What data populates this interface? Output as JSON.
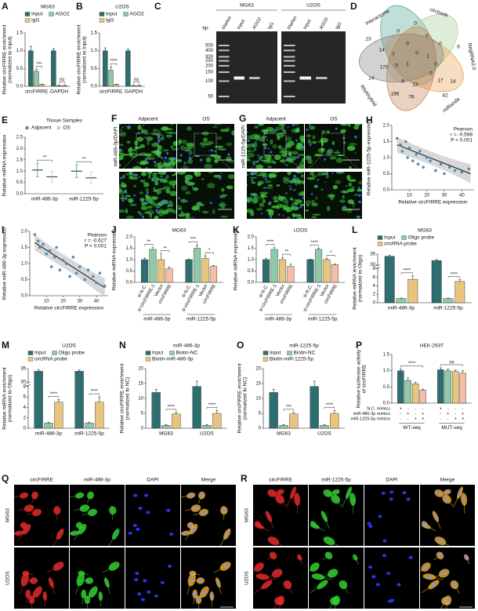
{
  "chart_data": [
    {
      "letter": "A",
      "type": "bar",
      "title": "MG63",
      "ylabel": [
        "Relative circFIRRE enrichment",
        "(normalized to Input)"
      ],
      "categories": [
        "circFIRRE",
        "GAPDH"
      ],
      "series": [
        {
          "name": "Input",
          "color": "#2f6e70",
          "values": [
            1.0,
            1.0
          ],
          "errors": [
            0.12,
            0.06
          ]
        },
        {
          "name": "AGO2",
          "color": "#8fcaa6",
          "values": [
            0.42,
            0.02
          ],
          "errors": [
            0.05,
            0.01
          ]
        },
        {
          "name": "IgG",
          "color": "#e9c47e",
          "values": [
            0.05,
            0.02
          ],
          "errors": [
            0.01,
            0.01
          ]
        }
      ],
      "ylim": [
        0,
        1.5
      ],
      "yticks": [
        {
          "value": 0,
          "label": "0.0"
        },
        {
          "value": 0.5,
          "label": "0.5"
        },
        {
          "value": 1,
          "label": "1.0"
        },
        {
          "value": 1.5,
          "label": "1.5"
        }
      ],
      "sig": [
        [
          "***"
        ],
        [
          "ns"
        ]
      ]
    },
    {
      "letter": "B",
      "type": "bar",
      "title": "U2OS",
      "ylabel": [
        "Relative circFIRRE enrichment",
        "(normalized to Input)"
      ],
      "categories": [
        "circFIRRE",
        "GAPDH"
      ],
      "series": [
        {
          "name": "Input",
          "color": "#2f6e70",
          "values": [
            1.0,
            1.0
          ],
          "errors": [
            0.08,
            0.05
          ]
        },
        {
          "name": "AGO2",
          "color": "#8fcaa6",
          "values": [
            0.45,
            0.02
          ],
          "errors": [
            0.1,
            0.01
          ]
        },
        {
          "name": "IgG",
          "color": "#e9c47e",
          "values": [
            0.05,
            0.02
          ],
          "errors": [
            0.01,
            0.01
          ]
        }
      ],
      "ylim": [
        0,
        1.5
      ],
      "yticks": [
        {
          "value": 0,
          "label": "0.0"
        },
        {
          "value": 0.5,
          "label": "0.5"
        },
        {
          "value": 1,
          "label": "1.0"
        },
        {
          "value": 1.5,
          "label": "1.5"
        }
      ],
      "sig": [
        [
          "****"
        ],
        [
          "ns"
        ]
      ]
    },
    {
      "letter": "E",
      "type": "dot",
      "title": "Tissue Samples",
      "ylabel": [
        "Relative miRNA expression"
      ],
      "categories": [
        "miR-486-3p",
        "miR-1225-5p"
      ],
      "series": [
        {
          "name": "Adjacent",
          "color": "#4a8fb8",
          "values": [
            1.05,
            1.0
          ],
          "errors": [
            0.3,
            0.28
          ]
        },
        {
          "name": "OS",
          "color": "#e9c47e",
          "values": [
            0.75,
            0.7
          ],
          "errors": [
            0.25,
            0.25
          ]
        }
      ],
      "ylim": [
        0,
        2.5
      ],
      "yticks": [
        {
          "value": 0,
          "label": "0.0"
        },
        {
          "value": 0.5,
          "label": "0.5"
        },
        {
          "value": 1,
          "label": "1.0"
        },
        {
          "value": 1.5,
          "label": "1.5"
        },
        {
          "value": 2,
          "label": "2.0"
        },
        2.5
      ],
      "sig": [
        [
          "**"
        ],
        [
          "**"
        ]
      ]
    },
    {
      "letter": "H",
      "type": "scatter",
      "ylabel": [
        "Relative miR-1225-5p expression"
      ],
      "xlabel": "Relative circFIRRE expression",
      "stats": [
        "Pearson",
        "r = -0.598",
        "P < 0.001"
      ],
      "color": "#4a8fb8",
      "x": [
        3,
        5,
        6,
        8,
        9,
        10,
        12,
        14,
        15,
        16,
        18,
        20,
        22,
        25,
        28,
        30,
        33,
        36,
        40,
        44
      ],
      "y": [
        1.6,
        1.4,
        1.2,
        1.5,
        1.0,
        1.3,
        0.9,
        1.1,
        0.8,
        1.2,
        0.7,
        1.0,
        0.9,
        0.6,
        0.8,
        0.5,
        0.7,
        0.6,
        0.55,
        0.65
      ],
      "fit": {
        "x": [
          3,
          45
        ],
        "y": [
          1.4,
          0.5
        ]
      },
      "xlim": [
        0,
        47
      ],
      "xticks": [
        10,
        20,
        30,
        40
      ],
      "ylim": [
        0,
        2
      ],
      "yticks": [
        {
          "value": 0,
          "label": "0.0"
        },
        {
          "value": 0.5,
          "label": "0.5"
        },
        {
          "value": 1,
          "label": "1.0"
        },
        {
          "value": 1.5,
          "label": "1.5"
        },
        {
          "value": 2,
          "label": "2.0"
        }
      ]
    },
    {
      "letter": "I",
      "type": "scatter",
      "ylabel": [
        "Relative miR-486-3p expression"
      ],
      "xlabel": "Relative circFIRRE expression",
      "stats": [
        "Pearson",
        "r = -0.627",
        "P < 0.001"
      ],
      "color": "#4a8fb8",
      "x": [
        3,
        5,
        6,
        8,
        10,
        12,
        13,
        15,
        16,
        18,
        20,
        22,
        24,
        26,
        28,
        30,
        33,
        35,
        38,
        40,
        42,
        45
      ],
      "y": [
        1.9,
        1.7,
        1.5,
        1.6,
        1.3,
        1.4,
        0.9,
        1.2,
        1.5,
        0.8,
        1.1,
        1.0,
        0.6,
        1.2,
        0.7,
        0.9,
        0.5,
        0.8,
        0.6,
        0.4,
        0.7,
        0.3
      ],
      "fit": {
        "x": [
          3,
          45
        ],
        "y": [
          1.65,
          0.25
        ]
      },
      "xlim": [
        0,
        47
      ],
      "xticks": [
        10,
        20,
        30,
        40
      ],
      "ylim": [
        0,
        2
      ],
      "yticks": [
        {
          "value": 0,
          "label": "0.0"
        },
        {
          "value": 0.5,
          "label": "0.5"
        },
        {
          "value": 1,
          "label": "1.0"
        },
        {
          "value": 1.5,
          "label": "1.5"
        },
        {
          "value": 2,
          "label": "2.0"
        }
      ]
    },
    {
      "letter": "J",
      "type": "bar",
      "title": "MG63",
      "legend": false,
      "ylabel": [
        "Relative miRNA expression"
      ],
      "categories": [
        "miR-486-3p",
        "miR-1225-5p"
      ],
      "series": [
        {
          "name": "si-N.C.",
          "color": "#2f6e70",
          "values": [
            1.0,
            1.0
          ],
          "errors": [
            0.07,
            0.03
          ]
        },
        {
          "name": "si-circFIRRE-1",
          "color": "#8fcaa6",
          "values": [
            1.45,
            1.5
          ],
          "errors": [
            0.08,
            0.15
          ]
        },
        {
          "name": "Vector",
          "color": "#e9c47e",
          "values": [
            1.0,
            1.05
          ],
          "errors": [
            0.25,
            0.12
          ]
        },
        {
          "name": "circFIRRE",
          "color": "#f3bfa6",
          "values": [
            0.6,
            0.7
          ],
          "errors": [
            0.08,
            0.04
          ]
        }
      ],
      "ylim": [
        0,
        2
      ],
      "yticks": [
        {
          "value": 0,
          "label": "0.0"
        },
        {
          "value": 0.5,
          "label": "0.5"
        },
        {
          "value": 1,
          "label": "1.0"
        },
        {
          "value": 1.5,
          "label": "1.5"
        },
        {
          "value": 2,
          "label": "2.0"
        }
      ],
      "sig": [
        [
          "**",
          "**"
        ],
        [
          "***",
          "*"
        ]
      ]
    },
    {
      "letter": "K",
      "type": "bar",
      "title": "U2OS",
      "legend": false,
      "ylabel": [
        "Relative miRNA expression"
      ],
      "categories": [
        "miR-486-3p",
        "miR-1225-5p"
      ],
      "series": [
        {
          "name": "si-N.C.",
          "color": "#2f6e70",
          "values": [
            1.0,
            1.0
          ],
          "errors": [
            0.05,
            0.02
          ]
        },
        {
          "name": "si-circFIRRE-1",
          "color": "#8fcaa6",
          "values": [
            1.45,
            1.45
          ],
          "errors": [
            0.08,
            0.06
          ]
        },
        {
          "name": "Vector",
          "color": "#e9c47e",
          "values": [
            1.0,
            1.0
          ],
          "errors": [
            0.1,
            0.05
          ]
        },
        {
          "name": "circFIRRE",
          "color": "#f3bfa6",
          "values": [
            0.7,
            0.78
          ],
          "errors": [
            0.1,
            0.03
          ]
        }
      ],
      "ylim": [
        0,
        2
      ],
      "yticks": [
        {
          "value": 0,
          "label": "0.0"
        },
        {
          "value": 0.5,
          "label": "0.5"
        },
        {
          "value": 1,
          "label": "1.0"
        },
        {
          "value": 1.5,
          "label": "1.5"
        },
        {
          "value": 2,
          "label": "2.0"
        }
      ],
      "sig": [
        [
          "****",
          "**"
        ],
        [
          "****",
          "*"
        ]
      ]
    },
    {
      "letter": "L",
      "type": "bar",
      "title": "MG63",
      "ylabel": [
        "Relative miRNA enrichment",
        "(normalized to Oligo)"
      ],
      "categories": [
        "miR-486-3p",
        "miR-1225-5p"
      ],
      "series": [
        {
          "name": "Input",
          "color": "#2f6e70",
          "values": [
            34,
            32
          ],
          "errors": [
            0.5,
            0.5
          ]
        },
        {
          "name": "Oligo probe",
          "color": "#8fcaa6",
          "values": [
            1,
            1
          ],
          "errors": [
            0.1,
            0.1
          ]
        },
        {
          "name": "circRNA probe",
          "color": "#e9c47e",
          "values": [
            5.5,
            5
          ],
          "errors": [
            0.8,
            0.4
          ]
        }
      ],
      "ylim": [
        0,
        35
      ],
      "ybreak": [
        8,
        30
      ],
      "yticks": [
        0,
        2,
        4,
        6,
        8,
        30,
        35
      ],
      "sig": [
        [
          "****"
        ],
        [
          "****"
        ]
      ]
    },
    {
      "letter": "M",
      "type": "bar",
      "title": "U2OS",
      "ylabel": [
        "Relative miRNA enrichment",
        "(normalized to Oligo)"
      ],
      "categories": [
        "miR-486-3p",
        "miR-1225-5p"
      ],
      "series": [
        {
          "name": "Input",
          "color": "#2f6e70",
          "values": [
            34,
            34
          ],
          "errors": [
            0.6,
            0.5
          ]
        },
        {
          "name": "Oligo probe",
          "color": "#8fcaa6",
          "values": [
            1,
            1
          ],
          "errors": [
            0.1,
            0.1
          ]
        },
        {
          "name": "circRNA probe",
          "color": "#e9c47e",
          "values": [
            5,
            5
          ],
          "errors": [
            0.5,
            1
          ]
        }
      ],
      "ylim": [
        0,
        35
      ],
      "ybreak": [
        8,
        30
      ],
      "yticks": [
        0,
        2,
        4,
        6,
        8,
        30,
        35
      ],
      "sig": [
        [
          "****"
        ],
        [
          "****"
        ]
      ]
    },
    {
      "letter": "N",
      "type": "bar",
      "title": "miR-486-3p",
      "ylabel": [
        "Relative circFIRRE enrichment",
        "(normalized to NC)"
      ],
      "categories": [
        "MG63",
        "U2OS"
      ],
      "series": [
        {
          "name": "Input",
          "color": "#2f6e70",
          "values": [
            12,
            14
          ],
          "errors": [
            1,
            1.8
          ]
        },
        {
          "name": "Biotin-NC",
          "color": "#8fcaa6",
          "values": [
            1,
            1
          ],
          "errors": [
            0.2,
            0.2
          ]
        },
        {
          "name": "Biotin-miR-486-3p",
          "color": "#e9c47e",
          "values": [
            4.8,
            5
          ],
          "errors": [
            0.5,
            1
          ]
        }
      ],
      "ylim": [
        0,
        20
      ],
      "yticks": [
        0,
        5,
        10,
        15,
        20
      ],
      "sig": [
        [
          "****"
        ],
        [
          "****"
        ]
      ]
    },
    {
      "letter": "O",
      "type": "bar",
      "title": "miR-1225-5p",
      "ylabel": [
        "Relative circFIRRE enrichment",
        "(normalized to NC)"
      ],
      "categories": [
        "MG63",
        "U2OS"
      ],
      "series": [
        {
          "name": "Input",
          "color": "#2f6e70",
          "values": [
            12,
            14
          ],
          "errors": [
            1,
            1.8
          ]
        },
        {
          "name": "Biotin-NC",
          "color": "#8fcaa6",
          "values": [
            1,
            1
          ],
          "errors": [
            0.2,
            0.2
          ]
        },
        {
          "name": "Biotin-miR-1225-5p",
          "color": "#e9c47e",
          "values": [
            4.8,
            5
          ],
          "errors": [
            0.5,
            1
          ]
        }
      ],
      "ylim": [
        0,
        20
      ],
      "yticks": [
        0,
        5,
        10,
        15,
        20
      ],
      "sig": [
        [
          "***"
        ],
        [
          "****"
        ]
      ]
    },
    {
      "letter": "P",
      "type": "bar",
      "title": "HEK-293T",
      "legend": false,
      "ylabel": [
        "Relative luciferase activity",
        "of circFIRRE"
      ],
      "categories": [
        "WT-seq",
        "MUT-seq"
      ],
      "series": [
        {
          "color": "#2f6e70",
          "values": [
            1.0,
            1.03
          ],
          "errors": [
            0.05,
            0.06
          ]
        },
        {
          "color": "#8fcaa6",
          "values": [
            0.7,
            1.0
          ],
          "errors": [
            0.08,
            0.05
          ]
        },
        {
          "color": "#e9c47e",
          "values": [
            0.6,
            0.98
          ],
          "errors": [
            0.05,
            0.04
          ]
        },
        {
          "color": "#f3bfa6",
          "values": [
            0.4,
            0.93
          ],
          "errors": [
            0.03,
            0.07
          ]
        }
      ],
      "treatments": [
        {
          "name": "N.C. mimics",
          "signs": [
            [
              "+",
              "-",
              "-",
              "-"
            ],
            [
              "+",
              "-",
              "-",
              "-"
            ]
          ]
        },
        {
          "name": "miR-486-3p mimics",
          "signs": [
            [
              "-",
              "+",
              "-",
              "+"
            ],
            [
              "-",
              "+",
              "-",
              "+"
            ]
          ]
        },
        {
          "name": "miR-1225-5p mimics",
          "signs": [
            [
              "-",
              "-",
              "+",
              "+"
            ],
            [
              "-",
              "-",
              "+",
              "+"
            ]
          ]
        }
      ],
      "ylim": [
        0,
        1.5
      ],
      "yticks": [
        {
          "value": 0,
          "label": "0.0"
        },
        {
          "value": 0.5,
          "label": "0.5"
        },
        {
          "value": 1,
          "label": "1.0"
        },
        {
          "value": 1.5,
          "label": "1.5"
        }
      ],
      "sig": [
        [
          "****"
        ],
        [
          "ns"
        ]
      ]
    }
  ],
  "gel": {
    "letter": "C",
    "cells": [
      "MG63",
      "U2OS"
    ],
    "unit": "bp",
    "lanes": [
      "Marker",
      "Input",
      "AGO2",
      "IgG"
    ],
    "ladder": [
      500,
      400,
      300,
      250,
      200,
      150,
      100,
      50
    ]
  },
  "venn": {
    "letter": "D",
    "sets": [
      "Interactome",
      "circbank",
      "RegRNA2.0",
      "miRanda",
      "RNAhybrid"
    ],
    "counts": [
      23,
      14,
      7,
      0,
      0,
      6,
      0,
      0,
      0,
      0,
      2,
      0,
      1,
      0,
      0,
      17,
      14,
      8,
      13,
      24,
      196,
      76,
      42,
      170
    ]
  },
  "fish": [
    {
      "letter": "F",
      "stain": "miR-486-3p/DAPI",
      "columns": [
        "Adjacent",
        "OS"
      ],
      "scale_top": "100μm",
      "scale_bottom": "50μm"
    },
    {
      "letter": "G",
      "stain": "miR-1225-5p/DAPI",
      "columns": [
        "Adjacent",
        "OS"
      ],
      "scale_top": "100μm",
      "scale_bottom": "50μm"
    }
  ],
  "ifs": [
    {
      "letter": "Q",
      "channels": [
        "circFIRRE",
        "miR-486-3p",
        "DAPI",
        "Merge"
      ],
      "rows": [
        "MG63",
        "U2OS"
      ],
      "scale": "50μm"
    },
    {
      "letter": "R",
      "channels": [
        "circFIRRE",
        "miR-1225-5p",
        "DAPI",
        "Merge"
      ],
      "rows": [
        "MG63",
        "U2OS"
      ],
      "scale": "50μm"
    }
  ]
}
